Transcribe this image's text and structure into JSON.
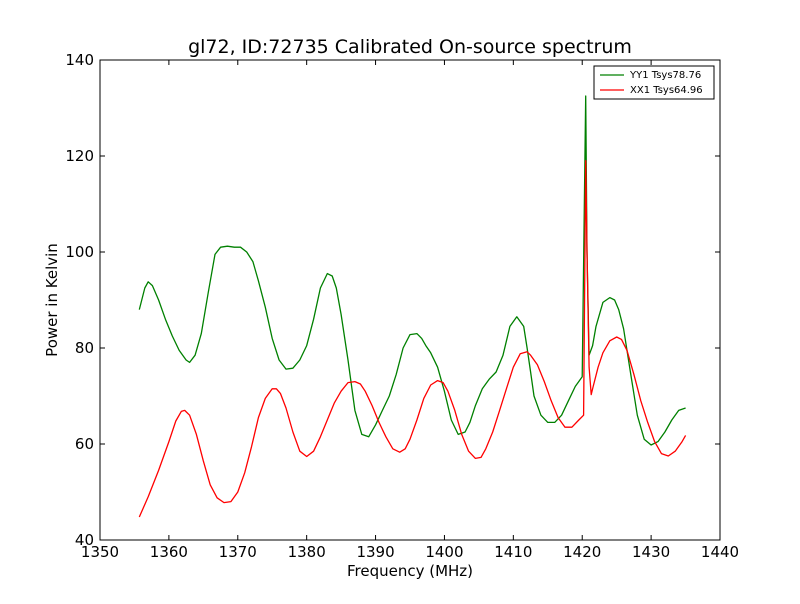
{
  "chart_data": {
    "type": "line",
    "title": "gl72, ID:72735 Calibrated On-source spectrum",
    "xlabel": "Frequency (MHz)",
    "ylabel": "Power in Kelvin",
    "xlim": [
      1350,
      1440
    ],
    "ylim": [
      40,
      140
    ],
    "xticks": [
      1350,
      1360,
      1370,
      1380,
      1390,
      1400,
      1410,
      1420,
      1430,
      1440
    ],
    "yticks": [
      40,
      60,
      80,
      100,
      120,
      140
    ],
    "grid": false,
    "legend_position": "top-right",
    "series": [
      {
        "name": "YY1 Tsys78.76",
        "color": "#008000",
        "x": [
          1355.7,
          1356.5,
          1357.0,
          1357.6,
          1358.5,
          1359.5,
          1360.5,
          1361.5,
          1362.5,
          1363.0,
          1363.8,
          1364.7,
          1365.7,
          1366.7,
          1367.5,
          1368.5,
          1369.5,
          1370.4,
          1371.3,
          1372.2,
          1373.0,
          1374.0,
          1375.0,
          1376.0,
          1377.0,
          1378.0,
          1379.0,
          1380.0,
          1381.0,
          1382.0,
          1383.0,
          1383.7,
          1384.3,
          1385.0,
          1386.0,
          1387.0,
          1388.0,
          1389.0,
          1390.0,
          1391.0,
          1392.0,
          1393.0,
          1394.0,
          1395.0,
          1396.0,
          1396.7,
          1397.3,
          1398.0,
          1399.0,
          1400.0,
          1401.0,
          1402.0,
          1403.0,
          1403.7,
          1404.5,
          1405.5,
          1406.5,
          1407.5,
          1408.5,
          1409.5,
          1410.5,
          1411.5,
          1412.0,
          1412.5,
          1413.0,
          1414.0,
          1415.0,
          1416.0,
          1417.0,
          1418.0,
          1419.0,
          1420.0,
          1420.5,
          1420.7,
          1421.0,
          1421.5,
          1422.0,
          1423.0,
          1424.0,
          1424.7,
          1425.3,
          1426.0,
          1427.0,
          1428.0,
          1429.0,
          1430.0,
          1431.0,
          1432.0,
          1433.0,
          1434.0,
          1435.0
        ],
        "values": [
          88.0,
          92.5,
          93.8,
          93.0,
          90.0,
          86.0,
          82.5,
          79.5,
          77.5,
          77.0,
          78.5,
          83.0,
          91.5,
          99.5,
          101.0,
          101.2,
          101.0,
          101.0,
          100.0,
          98.0,
          94.0,
          88.5,
          82.0,
          77.5,
          75.6,
          75.8,
          77.5,
          80.5,
          86.0,
          92.5,
          95.5,
          95.0,
          92.5,
          87.0,
          77.5,
          67.0,
          62.0,
          61.5,
          64.0,
          67.0,
          70.0,
          74.5,
          80.0,
          82.8,
          83.0,
          82.0,
          80.5,
          79.0,
          76.0,
          71.0,
          65.0,
          62.0,
          62.5,
          64.5,
          68.0,
          71.5,
          73.5,
          75.0,
          78.5,
          84.5,
          86.5,
          84.5,
          80.0,
          75.0,
          70.0,
          66.0,
          64.5,
          64.5,
          66.0,
          69.0,
          72.0,
          74.0,
          132.5,
          100.0,
          78.5,
          80.5,
          84.5,
          89.5,
          90.5,
          90.0,
          88.0,
          84.0,
          75.0,
          66.0,
          61.0,
          59.8,
          60.5,
          62.5,
          65.0,
          67.0,
          67.5
        ]
      },
      {
        "name": "XX1 Tsys64.96",
        "color": "#ff0000",
        "x": [
          1355.7,
          1357.0,
          1358.5,
          1360.0,
          1361.0,
          1361.8,
          1362.3,
          1363.0,
          1364.0,
          1365.0,
          1366.0,
          1367.0,
          1368.0,
          1369.0,
          1370.0,
          1371.0,
          1372.0,
          1373.0,
          1374.0,
          1375.0,
          1375.6,
          1376.2,
          1377.0,
          1378.0,
          1379.0,
          1380.0,
          1381.0,
          1382.0,
          1383.0,
          1384.0,
          1385.0,
          1386.0,
          1387.0,
          1387.8,
          1388.5,
          1389.5,
          1390.5,
          1391.5,
          1392.5,
          1393.5,
          1394.3,
          1395.0,
          1396.0,
          1397.0,
          1398.0,
          1399.0,
          1399.8,
          1400.5,
          1401.5,
          1402.5,
          1403.5,
          1404.5,
          1405.3,
          1406.0,
          1407.0,
          1408.0,
          1409.0,
          1410.0,
          1411.0,
          1412.0,
          1412.5,
          1413.5,
          1414.5,
          1415.5,
          1416.5,
          1417.5,
          1418.5,
          1419.5,
          1420.2,
          1420.5,
          1420.7,
          1421.0,
          1421.3,
          1421.6,
          1422.3,
          1423.0,
          1424.0,
          1425.0,
          1425.7,
          1426.5,
          1427.5,
          1428.5,
          1429.5,
          1430.5,
          1431.5,
          1432.5,
          1433.5,
          1434.5,
          1435.0
        ],
        "values": [
          44.8,
          49.0,
          54.5,
          60.5,
          64.8,
          66.8,
          67.0,
          66.0,
          62.0,
          56.5,
          51.5,
          48.8,
          47.8,
          48.0,
          50.0,
          54.0,
          59.5,
          65.5,
          69.5,
          71.5,
          71.5,
          70.5,
          67.5,
          62.5,
          58.5,
          57.4,
          58.5,
          61.5,
          65.0,
          68.5,
          71.0,
          72.8,
          73.0,
          72.5,
          71.0,
          68.0,
          64.5,
          61.5,
          59.0,
          58.3,
          59.0,
          61.0,
          65.0,
          69.5,
          72.3,
          73.2,
          72.8,
          71.0,
          67.0,
          62.0,
          58.5,
          57.0,
          57.2,
          59.0,
          62.5,
          67.0,
          71.5,
          76.0,
          78.8,
          79.2,
          78.5,
          76.5,
          73.0,
          69.0,
          65.5,
          63.5,
          63.5,
          65.0,
          66.0,
          119.0,
          100.0,
          76.0,
          70.3,
          72.0,
          76.0,
          79.0,
          81.5,
          82.3,
          81.8,
          79.5,
          74.5,
          69.0,
          64.5,
          60.5,
          58.0,
          57.5,
          58.5,
          60.5,
          61.8
        ]
      }
    ]
  }
}
